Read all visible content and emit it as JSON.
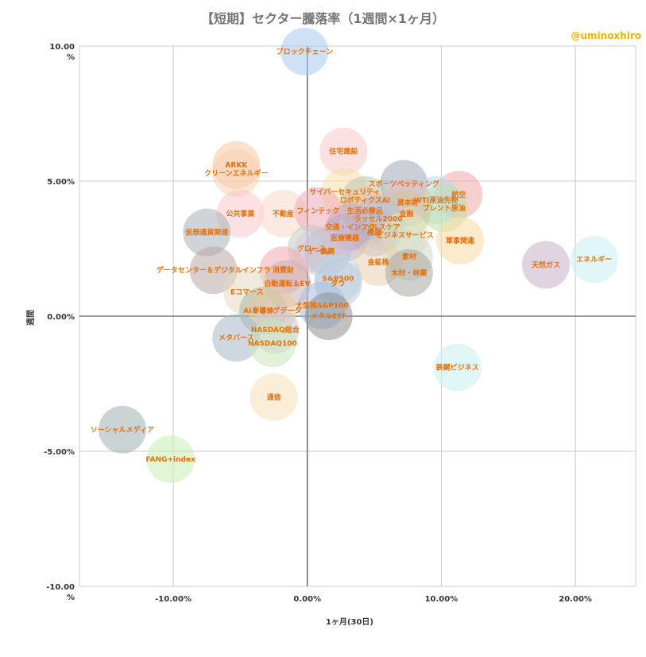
{
  "chart_data": {
    "type": "scatter",
    "title": "【短期】セクター騰落率（1週間×1ヶ月）",
    "watermark": "@uminoxhiro",
    "xlabel": "1ヶ月(30日)",
    "ylabel": "週間",
    "xlim": [
      -17,
      24.5
    ],
    "ylim": [
      -10,
      10
    ],
    "x_ticks": [
      {
        "v": -10,
        "label": "-10.00%"
      },
      {
        "v": 0,
        "label": "0.00%"
      },
      {
        "v": 10,
        "label": "10.00%"
      },
      {
        "v": 20,
        "label": "20.00%"
      }
    ],
    "y_ticks": [
      {
        "v": 10,
        "label": "10.00\n%"
      },
      {
        "v": 5,
        "label": "5.00%"
      },
      {
        "v": 0,
        "label": "0.00%"
      },
      {
        "v": -5,
        "label": "-5.00%"
      },
      {
        "v": -10,
        "label": "-10.00\n%"
      }
    ],
    "label_color": "#e8700a",
    "points": [
      {
        "name": "ブロックチェーン",
        "x": -0.2,
        "y": 9.8,
        "color": "#a8c8f0"
      },
      {
        "name": "住宅建設",
        "x": 2.7,
        "y": 6.1,
        "color": "#f8c8c8"
      },
      {
        "name": "ARKK",
        "x": -5.3,
        "y": 5.6,
        "color": "#f8c8a0"
      },
      {
        "name": "クリーンエネルギー",
        "x": -5.3,
        "y": 5.3,
        "color": "#f8d0b0"
      },
      {
        "name": "スポーツベッティング",
        "x": 7.2,
        "y": 4.9,
        "color": "#a0a8b8"
      },
      {
        "name": "航空",
        "x": 11.3,
        "y": 4.5,
        "color": "#f0a8a8"
      },
      {
        "name": "WTI原油先物",
        "x": 9.6,
        "y": 4.3,
        "color": "#b8d8f0"
      },
      {
        "name": "サイバーセキュリティ",
        "x": 2.8,
        "y": 4.6,
        "color": "#f8e0a8"
      },
      {
        "name": "ロボティクスAI",
        "x": 4.3,
        "y": 4.3,
        "color": "#b8c8b0"
      },
      {
        "name": "資本財",
        "x": 7.5,
        "y": 4.2,
        "color": "#e8b8b8"
      },
      {
        "name": "ブレント原油",
        "x": 10.2,
        "y": 4.0,
        "color": "#c0e0a8"
      },
      {
        "name": "生活必需品",
        "x": 4.3,
        "y": 3.9,
        "color": "#f0c0a0"
      },
      {
        "name": "金融",
        "x": 7.4,
        "y": 3.8,
        "color": "#d0c8a0"
      },
      {
        "name": "公共事業",
        "x": -5.0,
        "y": 3.8,
        "color": "#f8c8c8"
      },
      {
        "name": "不動産",
        "x": -1.8,
        "y": 3.8,
        "color": "#f8d8c8"
      },
      {
        "name": "フィンテック",
        "x": 0.8,
        "y": 3.9,
        "color": "#f0a8b8"
      },
      {
        "name": "ラッセル2000",
        "x": 5.3,
        "y": 3.6,
        "color": "#b8b8d0"
      },
      {
        "name": "交通・インフラ",
        "x": 3.2,
        "y": 3.3,
        "color": "#c8a8b8"
      },
      {
        "name": "ヘルスケア",
        "x": 5.6,
        "y": 3.3,
        "color": "#b8c8d8"
      },
      {
        "name": "機器",
        "x": 5.0,
        "y": 3.1,
        "color": "#c0b8c8"
      },
      {
        "name": "ビジネスサービス",
        "x": 7.3,
        "y": 3.0,
        "color": "#d8e8c0"
      },
      {
        "name": "仮想通貨関連",
        "x": -7.5,
        "y": 3.1,
        "color": "#a8b0b8"
      },
      {
        "name": "医療機器",
        "x": 2.8,
        "y": 2.9,
        "color": "#b8a8c0"
      },
      {
        "name": "軍事関連",
        "x": 11.4,
        "y": 2.8,
        "color": "#f8d8a0"
      },
      {
        "name": "グロース",
        "x": 0.3,
        "y": 2.5,
        "color": "#c0d0c0"
      },
      {
        "name": "ゲーム",
        "x": 0.8,
        "y": 2.4,
        "color": "#d8c8e0"
      },
      {
        "name": "鉄鋼",
        "x": 1.5,
        "y": 2.4,
        "color": "#c8c0d0"
      },
      {
        "name": "素材",
        "x": 7.6,
        "y": 2.2,
        "color": "#d0d8c8"
      },
      {
        "name": "金鉱株",
        "x": 5.3,
        "y": 2.0,
        "color": "#e8d0b0"
      },
      {
        "name": "エネルギー",
        "x": 21.4,
        "y": 2.1,
        "color": "#c8eef0"
      },
      {
        "name": "天然ガス",
        "x": 17.8,
        "y": 1.9,
        "color": "#c8b0c8"
      },
      {
        "name": "消費財",
        "x": -1.8,
        "y": 1.7,
        "color": "#f0a8b0"
      },
      {
        "name": "データセンター＆デジタルインフラ",
        "x": -7.0,
        "y": 1.7,
        "color": "#b8a8a8"
      },
      {
        "name": "木材・林業",
        "x": 7.6,
        "y": 1.6,
        "color": "#a8a8a0"
      },
      {
        "name": "S&P500",
        "x": 2.3,
        "y": 1.4,
        "color": "#b8d8e8"
      },
      {
        "name": "自動運転＆EV",
        "x": -1.5,
        "y": 1.2,
        "color": "#c8b0b0"
      },
      {
        "name": "Eコマース",
        "x": -4.5,
        "y": 0.9,
        "color": "#e8d8c0"
      },
      {
        "name": "ダウ",
        "x": 2.3,
        "y": 1.2,
        "color": "#c0c8d8"
      },
      {
        "name": "大型株S&P100",
        "x": 1.1,
        "y": 0.4,
        "color": "#a8c0e0"
      },
      {
        "name": "半導体",
        "x": -3.3,
        "y": 0.2,
        "color": "#a8b8a8"
      },
      {
        "name": "AI＆ビッグデータ",
        "x": -2.6,
        "y": 0.2,
        "color": "#e8c8a0"
      },
      {
        "name": "メタルETF",
        "x": 1.6,
        "y": 0.0,
        "color": "#909090"
      },
      {
        "name": "NASDAQ総合",
        "x": -2.4,
        "y": -0.5,
        "color": "#d0c8d8"
      },
      {
        "name": "メタバース",
        "x": -5.3,
        "y": -0.8,
        "color": "#a8b8c8"
      },
      {
        "name": "NASDAQ100",
        "x": -2.6,
        "y": -1.0,
        "color": "#c8e8b8"
      },
      {
        "name": "鉄鋼ビジネス",
        "x": 11.2,
        "y": -1.9,
        "color": "#c8eef0"
      },
      {
        "name": "通信",
        "x": -2.5,
        "y": -3.0,
        "color": "#f8e0b8"
      },
      {
        "name": "ソーシャルメディア",
        "x": -13.8,
        "y": -4.2,
        "color": "#a0b0b0"
      },
      {
        "name": "FANG+index",
        "x": -10.2,
        "y": -5.3,
        "color": "#c8eeb0"
      }
    ]
  }
}
